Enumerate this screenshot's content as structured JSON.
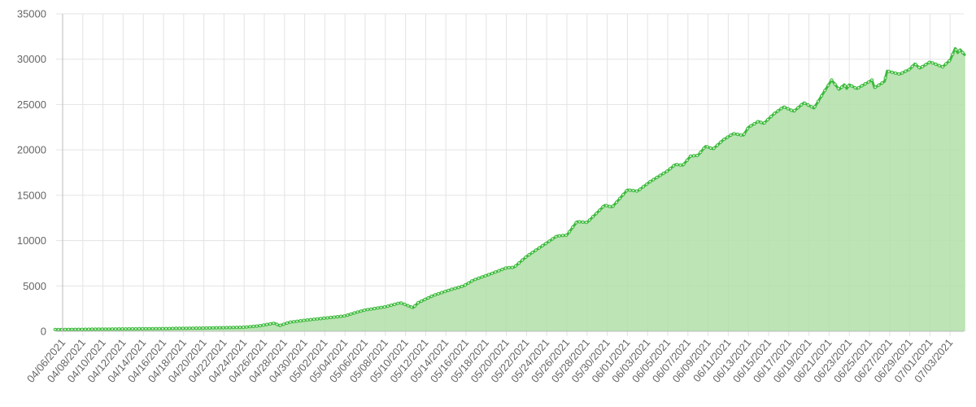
{
  "chart_data": {
    "type": "area",
    "title": "",
    "xlabel": "",
    "ylabel": "",
    "ylim": [
      0,
      35000
    ],
    "y_ticks": [
      0,
      5000,
      10000,
      15000,
      20000,
      25000,
      30000,
      35000
    ],
    "x_tick_labels": [
      "04/06/2021",
      "04/08/2021",
      "04/10/2021",
      "04/12/2021",
      "04/14/2021",
      "04/16/2021",
      "04/18/2021",
      "04/20/2021",
      "04/22/2021",
      "04/24/2021",
      "04/26/2021",
      "04/28/2021",
      "04/30/2021",
      "05/02/2021",
      "05/04/2021",
      "05/06/2021",
      "05/08/2021",
      "05/10/2021",
      "05/12/2021",
      "05/14/2021",
      "05/16/2021",
      "05/18/2021",
      "05/20/2021",
      "05/22/2021",
      "05/24/2021",
      "05/26/2021",
      "05/28/2021",
      "05/30/2021",
      "06/01/2021",
      "06/03/2021",
      "06/05/2021",
      "06/07/2021",
      "06/09/2021",
      "06/11/2021",
      "06/13/2021",
      "06/15/2021",
      "06/17/2021",
      "06/19/2021",
      "06/21/2021",
      "06/23/2021",
      "06/25/2021",
      "06/27/2021",
      "06/29/2021",
      "07/01/2021",
      "07/03/2021"
    ],
    "grid": true,
    "legend": "none",
    "colors": {
      "line": "#3dba3d",
      "fill": "#b0dfa8",
      "grid": "#e3e3e3",
      "axis": "#bbbbbb"
    },
    "series": [
      {
        "points": [
          [
            "2021-04-05T06:00",
            200
          ],
          [
            "2021-04-06T00:00",
            200
          ],
          [
            "2021-04-08T00:00",
            220
          ],
          [
            "2021-04-10T00:00",
            240
          ],
          [
            "2021-04-12T00:00",
            260
          ],
          [
            "2021-04-14T00:00",
            280
          ],
          [
            "2021-04-16T00:00",
            300
          ],
          [
            "2021-04-18T00:00",
            330
          ],
          [
            "2021-04-20T00:00",
            360
          ],
          [
            "2021-04-22T00:00",
            400
          ],
          [
            "2021-04-24T00:00",
            450
          ],
          [
            "2021-04-25T12:00",
            600
          ],
          [
            "2021-04-27T00:00",
            900
          ],
          [
            "2021-04-27T12:00",
            630
          ],
          [
            "2021-04-28T12:00",
            1000
          ],
          [
            "2021-04-30T06:00",
            1250
          ],
          [
            "2021-05-02T00:00",
            1450
          ],
          [
            "2021-05-04T00:00",
            1700
          ],
          [
            "2021-05-05T00:00",
            2050
          ],
          [
            "2021-05-06T00:00",
            2350
          ],
          [
            "2021-05-08T00:00",
            2700
          ],
          [
            "2021-05-09T12:00",
            3150
          ],
          [
            "2021-05-10T18:00",
            2600
          ],
          [
            "2021-05-11T06:00",
            3150
          ],
          [
            "2021-05-12T18:00",
            3950
          ],
          [
            "2021-05-14T12:00",
            4600
          ],
          [
            "2021-05-15T18:00",
            5000
          ],
          [
            "2021-05-16T18:00",
            5650
          ],
          [
            "2021-05-18T12:00",
            6350
          ],
          [
            "2021-05-20T00:00",
            7000
          ],
          [
            "2021-05-20T18:00",
            7050
          ],
          [
            "2021-05-22T00:00",
            8250
          ],
          [
            "2021-05-25T00:00",
            10500
          ],
          [
            "2021-05-26T00:00",
            10600
          ],
          [
            "2021-05-27T00:00",
            12100
          ],
          [
            "2021-05-28T00:00",
            12000
          ],
          [
            "2021-05-29T18:00",
            13900
          ],
          [
            "2021-05-30T12:00",
            13700
          ],
          [
            "2021-06-01T00:00",
            15600
          ],
          [
            "2021-06-02T00:00",
            15450
          ],
          [
            "2021-06-03T06:00",
            16500
          ],
          [
            "2021-06-05T00:00",
            17700
          ],
          [
            "2021-06-05T18:00",
            18400
          ],
          [
            "2021-06-06T12:00",
            18300
          ],
          [
            "2021-06-07T06:00",
            19300
          ],
          [
            "2021-06-08T00:00",
            19400
          ],
          [
            "2021-06-08T18:00",
            20400
          ],
          [
            "2021-06-09T12:00",
            20100
          ],
          [
            "2021-06-10T12:00",
            21100
          ],
          [
            "2021-06-11T12:00",
            21800
          ],
          [
            "2021-06-12T12:00",
            21600
          ],
          [
            "2021-06-13T00:00",
            22500
          ],
          [
            "2021-06-14T00:00",
            23150
          ],
          [
            "2021-06-14T12:00",
            22900
          ],
          [
            "2021-06-15T12:00",
            23950
          ],
          [
            "2021-06-16T12:00",
            24750
          ],
          [
            "2021-06-17T12:00",
            24250
          ],
          [
            "2021-06-18T12:00",
            25200
          ],
          [
            "2021-06-19T12:00",
            24600
          ],
          [
            "2021-06-20T12:00",
            26400
          ],
          [
            "2021-06-21T06:00",
            27700
          ],
          [
            "2021-06-22T00:00",
            26650
          ],
          [
            "2021-06-22T12:00",
            27200
          ],
          [
            "2021-06-22T18:00",
            26750
          ],
          [
            "2021-06-23T00:00",
            27200
          ],
          [
            "2021-06-23T18:00",
            26750
          ],
          [
            "2021-06-25T06:00",
            27700
          ],
          [
            "2021-06-25T12:00",
            26850
          ],
          [
            "2021-06-26T12:00",
            27550
          ],
          [
            "2021-06-26T18:00",
            28700
          ],
          [
            "2021-06-28T00:00",
            28350
          ],
          [
            "2021-06-29T00:00",
            28900
          ],
          [
            "2021-06-29T12:00",
            29500
          ],
          [
            "2021-06-30T00:00",
            29000
          ],
          [
            "2021-07-01T00:00",
            29700
          ],
          [
            "2021-07-02T06:00",
            29150
          ],
          [
            "2021-07-03T00:00",
            29900
          ],
          [
            "2021-07-03T12:00",
            31200
          ],
          [
            "2021-07-03T18:00",
            30700
          ],
          [
            "2021-07-04T00:00",
            31050
          ],
          [
            "2021-07-04T12:00",
            30400
          ]
        ]
      }
    ]
  }
}
